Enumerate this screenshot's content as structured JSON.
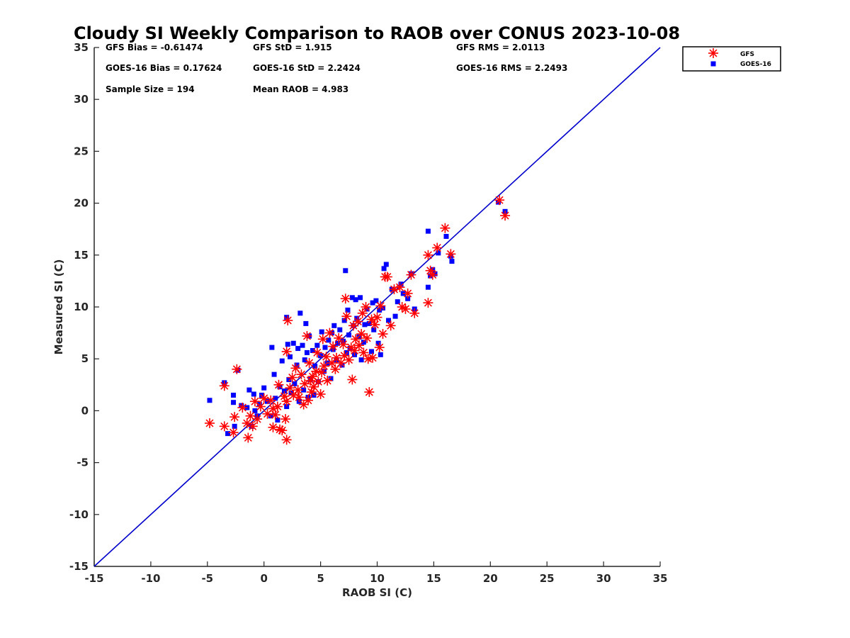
{
  "chart_data": {
    "type": "scatter",
    "title": "Cloudy SI Weekly Comparison to RAOB over CONUS 2023-10-08",
    "xlabel": "RAOB SI (C)",
    "ylabel": "Measured SI (C)",
    "xlim": [
      -15,
      35
    ],
    "ylim": [
      -15,
      35
    ],
    "xticks": [
      -15,
      -10,
      -5,
      0,
      5,
      10,
      15,
      20,
      25,
      30,
      35
    ],
    "yticks": [
      -15,
      -10,
      -5,
      0,
      5,
      10,
      15,
      20,
      25,
      30,
      35
    ],
    "grid": false,
    "legend_position": "outside-top-right",
    "reference_line": {
      "from": [
        -15,
        -15
      ],
      "to": [
        35,
        35
      ],
      "color": "#0000cc"
    },
    "stats": {
      "gfs_bias": "GFS Bias = -0.61474",
      "gfs_std": "GFS StD = 1.915",
      "gfs_rms": "GFS RMS = 2.0113",
      "goes_bias": "GOES-16 Bias = 0.17624",
      "goes_std": "GOES-16 StD = 2.2424",
      "goes_rms": "GOES-16 RMS = 2.2493",
      "sample_size": "Sample Size = 194",
      "mean_raob": "Mean RAOB = 4.983"
    },
    "series": [
      {
        "name": "GFS",
        "marker": "asterisk",
        "color": "#ff0000",
        "points": [
          [
            -4.8,
            -1.2
          ],
          [
            -3.5,
            -1.5
          ],
          [
            -3.5,
            2.4
          ],
          [
            -2.7,
            -2.1
          ],
          [
            -2.6,
            -0.6
          ],
          [
            -2.4,
            4.0
          ],
          [
            -1.9,
            0.3
          ],
          [
            -1.5,
            -1.2
          ],
          [
            -1.4,
            -2.6
          ],
          [
            -1.2,
            -0.5
          ],
          [
            -1.0,
            -1.5
          ],
          [
            -0.8,
            0.9
          ],
          [
            -0.6,
            -0.8
          ],
          [
            -0.3,
            0.4
          ],
          [
            0.0,
            1.2
          ],
          [
            0.3,
            -0.3
          ],
          [
            0.6,
            1.0
          ],
          [
            0.8,
            0.2
          ],
          [
            0.8,
            -1.6
          ],
          [
            1.0,
            -0.4
          ],
          [
            1.2,
            0.4
          ],
          [
            1.3,
            2.5
          ],
          [
            1.4,
            -1.8
          ],
          [
            1.6,
            -1.9
          ],
          [
            1.8,
            1.4
          ],
          [
            1.9,
            -0.8
          ],
          [
            2.0,
            -2.8
          ],
          [
            2.0,
            0.9
          ],
          [
            2.0,
            5.7
          ],
          [
            2.1,
            8.7
          ],
          [
            2.3,
            2.2
          ],
          [
            2.5,
            3.2
          ],
          [
            2.6,
            1.5
          ],
          [
            2.8,
            4.1
          ],
          [
            3.0,
            2.0
          ],
          [
            3.1,
            1.3
          ],
          [
            3.3,
            3.5
          ],
          [
            3.5,
            0.6
          ],
          [
            3.6,
            2.6
          ],
          [
            3.8,
            7.2
          ],
          [
            3.9,
            1.0
          ],
          [
            4.0,
            4.6
          ],
          [
            4.1,
            2.9
          ],
          [
            4.2,
            1.8
          ],
          [
            4.3,
            3.3
          ],
          [
            4.4,
            2.3
          ],
          [
            4.6,
            3.8
          ],
          [
            4.7,
            5.6
          ],
          [
            4.8,
            2.8
          ],
          [
            5.0,
            1.6
          ],
          [
            5.1,
            3.7
          ],
          [
            5.2,
            6.9
          ],
          [
            5.3,
            4.3
          ],
          [
            5.5,
            5.2
          ],
          [
            5.6,
            2.9
          ],
          [
            5.8,
            7.5
          ],
          [
            6.0,
            4.6
          ],
          [
            6.1,
            6.2
          ],
          [
            6.3,
            4.0
          ],
          [
            6.4,
            5.1
          ],
          [
            6.6,
            7.0
          ],
          [
            6.8,
            4.6
          ],
          [
            7.0,
            6.4
          ],
          [
            7.1,
            5.3
          ],
          [
            7.2,
            10.8
          ],
          [
            7.3,
            9.1
          ],
          [
            7.5,
            4.9
          ],
          [
            7.7,
            6.1
          ],
          [
            7.8,
            3.0
          ],
          [
            7.9,
            8.2
          ],
          [
            8.0,
            5.8
          ],
          [
            8.1,
            6.9
          ],
          [
            8.3,
            8.6
          ],
          [
            8.4,
            6.3
          ],
          [
            8.6,
            7.4
          ],
          [
            8.7,
            9.4
          ],
          [
            8.8,
            5.6
          ],
          [
            9.0,
            10.0
          ],
          [
            9.1,
            7.0
          ],
          [
            9.2,
            5.0
          ],
          [
            9.3,
            1.8
          ],
          [
            9.5,
            8.8
          ],
          [
            9.6,
            5.1
          ],
          [
            9.8,
            8.3
          ],
          [
            10.0,
            9.0
          ],
          [
            10.2,
            6.1
          ],
          [
            10.3,
            10.1
          ],
          [
            10.5,
            7.4
          ],
          [
            10.7,
            12.9
          ],
          [
            10.9,
            12.9
          ],
          [
            11.2,
            8.2
          ],
          [
            11.5,
            11.7
          ],
          [
            12.0,
            11.9
          ],
          [
            12.2,
            10.0
          ],
          [
            12.5,
            9.8
          ],
          [
            12.7,
            11.3
          ],
          [
            13.0,
            13.1
          ],
          [
            13.3,
            9.4
          ],
          [
            14.5,
            10.4
          ],
          [
            14.5,
            15.0
          ],
          [
            14.7,
            13.5
          ],
          [
            14.9,
            13.1
          ],
          [
            15.3,
            15.7
          ],
          [
            16.0,
            17.6
          ],
          [
            16.5,
            15.1
          ],
          [
            20.8,
            20.3
          ],
          [
            21.3,
            18.8
          ]
        ]
      },
      {
        "name": "GOES-16",
        "marker": "square",
        "color": "#0000ff",
        "points": [
          [
            -4.8,
            1.0
          ],
          [
            -3.5,
            2.7
          ],
          [
            -3.2,
            -2.2
          ],
          [
            -2.7,
            1.5
          ],
          [
            -2.7,
            0.8
          ],
          [
            -2.6,
            -1.5
          ],
          [
            -2.3,
            3.9
          ],
          [
            -2.0,
            0.5
          ],
          [
            -1.5,
            0.3
          ],
          [
            -1.3,
            2.0
          ],
          [
            -1.1,
            -1.5
          ],
          [
            -0.9,
            1.6
          ],
          [
            -0.8,
            0.0
          ],
          [
            -0.6,
            -0.5
          ],
          [
            -0.4,
            0.6
          ],
          [
            -0.2,
            1.5
          ],
          [
            0.0,
            2.2
          ],
          [
            0.3,
            0.9
          ],
          [
            0.6,
            -0.5
          ],
          [
            0.7,
            6.1
          ],
          [
            0.9,
            3.5
          ],
          [
            1.0,
            1.2
          ],
          [
            1.2,
            -0.9
          ],
          [
            1.4,
            2.3
          ],
          [
            1.6,
            4.8
          ],
          [
            1.8,
            1.9
          ],
          [
            2.0,
            9.0
          ],
          [
            2.0,
            0.4
          ],
          [
            2.1,
            6.4
          ],
          [
            2.2,
            3.0
          ],
          [
            2.3,
            5.2
          ],
          [
            2.4,
            1.7
          ],
          [
            2.6,
            6.5
          ],
          [
            2.7,
            2.6
          ],
          [
            2.9,
            4.4
          ],
          [
            3.0,
            6.0
          ],
          [
            3.1,
            0.9
          ],
          [
            3.2,
            9.4
          ],
          [
            3.4,
            6.3
          ],
          [
            3.5,
            2.0
          ],
          [
            3.6,
            4.9
          ],
          [
            3.7,
            8.4
          ],
          [
            3.8,
            5.6
          ],
          [
            3.9,
            1.3
          ],
          [
            4.0,
            7.2
          ],
          [
            4.1,
            3.0
          ],
          [
            4.3,
            5.8
          ],
          [
            4.4,
            1.5
          ],
          [
            4.5,
            4.3
          ],
          [
            4.7,
            6.3
          ],
          [
            4.8,
            2.8
          ],
          [
            5.0,
            5.3
          ],
          [
            5.1,
            7.6
          ],
          [
            5.3,
            3.8
          ],
          [
            5.4,
            6.1
          ],
          [
            5.6,
            4.6
          ],
          [
            5.7,
            6.8
          ],
          [
            5.9,
            3.1
          ],
          [
            6.0,
            7.5
          ],
          [
            6.1,
            5.9
          ],
          [
            6.2,
            8.2
          ],
          [
            6.4,
            4.9
          ],
          [
            6.5,
            6.5
          ],
          [
            6.7,
            7.8
          ],
          [
            6.9,
            4.4
          ],
          [
            7.0,
            6.7
          ],
          [
            7.1,
            8.7
          ],
          [
            7.2,
            13.5
          ],
          [
            7.3,
            5.6
          ],
          [
            7.4,
            9.7
          ],
          [
            7.5,
            7.3
          ],
          [
            7.6,
            6.0
          ],
          [
            7.8,
            10.9
          ],
          [
            7.9,
            8.2
          ],
          [
            8.0,
            5.4
          ],
          [
            8.1,
            10.7
          ],
          [
            8.2,
            8.9
          ],
          [
            8.4,
            7.1
          ],
          [
            8.5,
            10.9
          ],
          [
            8.6,
            4.9
          ],
          [
            8.8,
            6.6
          ],
          [
            8.9,
            8.3
          ],
          [
            9.1,
            9.8
          ],
          [
            9.3,
            8.4
          ],
          [
            9.5,
            5.7
          ],
          [
            9.6,
            10.4
          ],
          [
            9.7,
            7.8
          ],
          [
            9.9,
            10.6
          ],
          [
            10.1,
            6.5
          ],
          [
            10.2,
            9.7
          ],
          [
            10.3,
            5.4
          ],
          [
            10.5,
            9.9
          ],
          [
            10.6,
            13.7
          ],
          [
            10.8,
            14.1
          ],
          [
            11.0,
            8.7
          ],
          [
            11.3,
            11.7
          ],
          [
            11.6,
            9.1
          ],
          [
            11.8,
            10.5
          ],
          [
            12.1,
            12.2
          ],
          [
            12.3,
            11.3
          ],
          [
            12.7,
            10.8
          ],
          [
            13.0,
            13.2
          ],
          [
            13.3,
            9.8
          ],
          [
            14.5,
            17.3
          ],
          [
            14.5,
            11.9
          ],
          [
            14.7,
            13.0
          ],
          [
            14.9,
            13.6
          ],
          [
            15.1,
            13.2
          ],
          [
            15.4,
            15.2
          ],
          [
            16.1,
            16.8
          ],
          [
            16.5,
            14.9
          ],
          [
            16.6,
            14.4
          ],
          [
            20.7,
            20.1
          ],
          [
            21.3,
            19.2
          ]
        ]
      }
    ]
  }
}
